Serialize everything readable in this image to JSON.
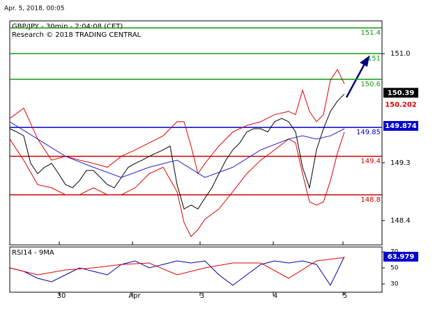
{
  "caption": "Apr. 5, 2018, 00:05",
  "chart_data": [
    {
      "type": "line",
      "title": "GBP/JPY - 30min - 2:04:08 (CET)",
      "subtitle": "Research © 2018 TRADING CENTRAL",
      "xlim": [
        0,
        106.8
      ],
      "ylim": [
        148.02,
        151.51
      ],
      "yticks": [
        {
          "value": 151,
          "label": "151.0"
        },
        149.3,
        148.4
      ],
      "levels": [
        {
          "value": 151.4,
          "color": "#109a10"
        },
        {
          "value": 151,
          "color": "#109a10"
        },
        {
          "value": 150.6,
          "color": "#109a10"
        },
        {
          "value": 149.85,
          "color": "#0000cc"
        },
        {
          "value": 149.4,
          "color": "#cc0000"
        },
        {
          "value": 148.8,
          "color": "#cc0000"
        }
      ],
      "price_labels": [
        {
          "value": 150.39,
          "color": "#000000",
          "boxed": true
        },
        {
          "value": 150.202,
          "color": "#dd0000",
          "boxed": false
        },
        {
          "value": 149.874,
          "color": "#0000cc",
          "boxed": true
        }
      ],
      "series": [
        {
          "color": "#000000",
          "x": [
            0,
            2,
            4,
            6,
            8,
            10,
            12,
            14,
            16,
            18,
            20,
            22,
            24,
            26,
            28,
            30,
            32,
            34,
            36,
            38,
            40,
            42,
            44,
            46,
            48,
            50,
            52,
            54,
            56,
            58,
            60,
            62,
            64,
            66,
            68,
            70,
            72,
            74,
            76,
            78,
            80,
            82,
            84,
            86,
            88,
            90,
            92,
            94,
            96
          ],
          "values": [
            149.83,
            149.78,
            149.72,
            149.29,
            149.13,
            149.23,
            149.29,
            149.13,
            148.96,
            148.91,
            149.02,
            149.18,
            149.18,
            149.07,
            148.96,
            148.91,
            149.07,
            149.23,
            149.29,
            149.34,
            149.4,
            149.45,
            149.5,
            149.56,
            148.96,
            148.58,
            148.64,
            148.58,
            148.75,
            148.91,
            149.13,
            149.34,
            149.5,
            149.61,
            149.78,
            149.83,
            149.83,
            149.78,
            149.94,
            149.99,
            149.94,
            149.78,
            149.23,
            148.91,
            149.5,
            149.83,
            150.1,
            150.26,
            150.37
          ]
        },
        {
          "color": "#dd0000",
          "x": [
            0,
            4,
            8,
            12,
            16,
            20,
            24,
            28,
            32,
            36,
            40,
            44,
            48,
            50,
            52,
            54,
            56,
            60,
            64,
            68,
            72,
            76,
            80,
            82,
            84,
            86,
            88,
            90,
            92,
            94,
            96
          ],
          "values": [
            149.99,
            150.15,
            149.67,
            149.34,
            149.4,
            149.34,
            149.29,
            149.23,
            149.4,
            149.5,
            149.61,
            149.72,
            149.94,
            149.94,
            149.56,
            149.13,
            149.29,
            149.56,
            149.78,
            149.88,
            149.94,
            150.05,
            150.1,
            150.05,
            150.43,
            150.1,
            149.94,
            150.05,
            150.59,
            150.75,
            150.53
          ]
        },
        {
          "color": "#dd0000",
          "x": [
            0,
            4,
            8,
            12,
            16,
            20,
            24,
            28,
            32,
            36,
            40,
            44,
            48,
            50,
            52,
            54,
            56,
            60,
            64,
            68,
            72,
            76,
            80,
            82,
            84,
            86,
            88,
            90,
            92,
            94,
            96
          ],
          "values": [
            149.67,
            149.34,
            148.96,
            148.91,
            148.8,
            148.8,
            148.91,
            148.8,
            148.8,
            148.91,
            149.13,
            149.23,
            148.85,
            148.37,
            148.15,
            148.26,
            148.42,
            148.58,
            148.85,
            149.13,
            149.34,
            149.5,
            149.67,
            149.61,
            149.13,
            148.69,
            148.64,
            148.69,
            149.02,
            149.45,
            149.78
          ]
        },
        {
          "color": "#2222cc",
          "x": [
            0,
            8,
            16,
            24,
            32,
            40,
            48,
            56,
            64,
            72,
            80,
            84,
            88,
            92,
            96
          ],
          "values": [
            149.94,
            149.67,
            149.4,
            149.23,
            149.07,
            149.23,
            149.34,
            149.07,
            149.23,
            149.5,
            149.67,
            149.72,
            149.67,
            149.72,
            149.83
          ]
        }
      ]
    },
    {
      "type": "line",
      "title": "RSI14 - 9MA",
      "xlim": [
        0,
        106.8
      ],
      "ylim": [
        19.6,
        76.1
      ],
      "xticks": [
        {
          "value": 14.2,
          "label": "30"
        },
        {
          "value": 35.2,
          "label": "Apr"
        },
        {
          "value": 54.6,
          "label": "3"
        },
        {
          "value": 75.6,
          "label": "4"
        },
        {
          "value": 95.6,
          "label": "5"
        }
      ],
      "yticks": [
        70,
        50,
        30
      ],
      "price_labels": [
        {
          "value": 63.979,
          "color": "#0000cc",
          "boxed": true
        }
      ],
      "series": [
        {
          "color": "#0000aa",
          "x": [
            0,
            4,
            8,
            12,
            16,
            20,
            24,
            28,
            32,
            36,
            40,
            44,
            48,
            52,
            56,
            60,
            64,
            68,
            72,
            76,
            80,
            84,
            88,
            92,
            96
          ],
          "values": [
            50,
            45.7,
            37,
            32.6,
            41.3,
            50,
            45.7,
            41.3,
            54.3,
            58.7,
            50,
            54.3,
            58.7,
            56.1,
            58.7,
            41.3,
            28.3,
            41.3,
            54.3,
            58.7,
            56.1,
            58.7,
            54.3,
            28.3,
            64
          ]
        },
        {
          "color": "#dd0000",
          "x": [
            0,
            8,
            16,
            24,
            32,
            40,
            48,
            56,
            64,
            72,
            80,
            88,
            96
          ],
          "values": [
            50,
            41.3,
            47.4,
            50,
            54.3,
            56.1,
            41.3,
            50,
            56.1,
            56.1,
            37,
            58.7,
            63
          ]
        }
      ]
    }
  ]
}
